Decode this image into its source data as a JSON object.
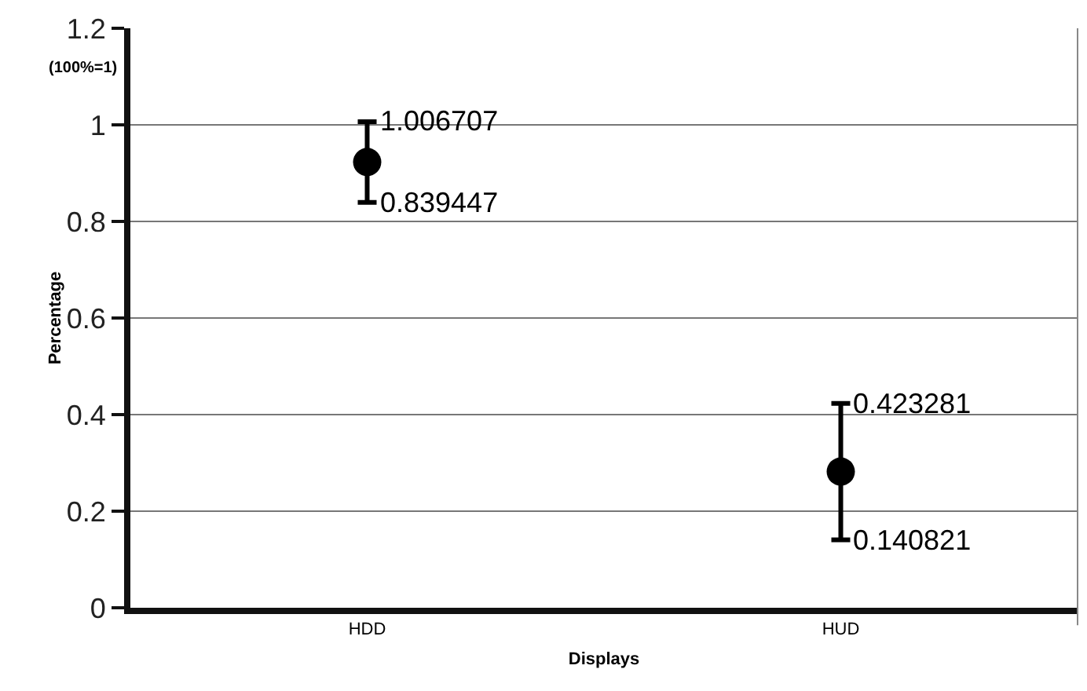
{
  "chart_data": {
    "type": "scatter",
    "xlabel": "Displays",
    "ylabel": "Percentage",
    "categories": [
      "HDD",
      "HUD"
    ],
    "values": [
      0.923,
      0.282
    ],
    "errors": [
      0.0836,
      0.1412
    ],
    "color": "#000000",
    "marker": "circle",
    "ylim": [
      0,
      1.2
    ],
    "yticks": [
      0,
      0.2,
      0.4,
      0.6,
      0.8,
      1,
      1.2
    ],
    "grid": "y",
    "annotations": [
      "(100%=1)",
      {
        "text": "1.006707",
        "x": "HDD",
        "y": 1.006707
      },
      {
        "text": "0.839447",
        "x": "HDD",
        "y": 0.839447
      },
      {
        "text": "0.423281",
        "x": "HUD",
        "y": 0.423281
      },
      {
        "text": "0.140821",
        "x": "HUD",
        "y": 0.140821
      }
    ]
  }
}
